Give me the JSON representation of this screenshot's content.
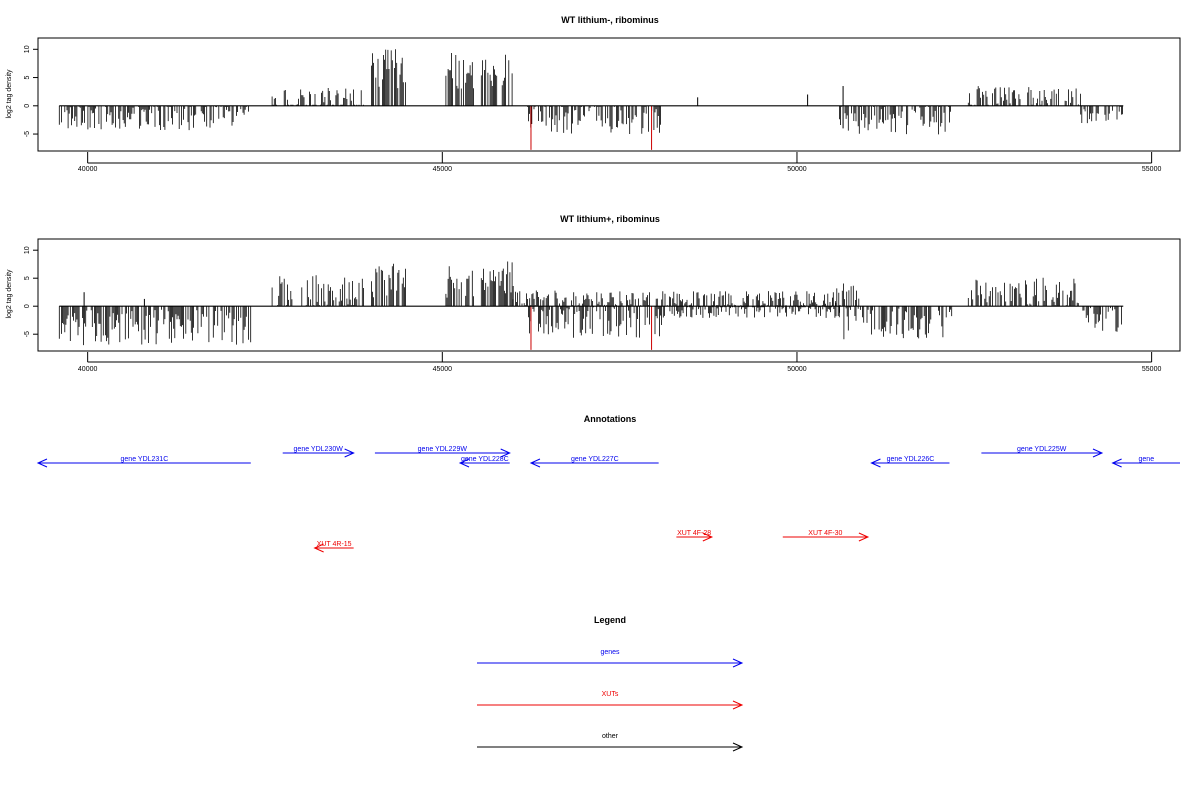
{
  "chart_data": [
    {
      "type": "bar",
      "title": "WT lithium-, ribominus",
      "xlabel": "",
      "ylabel": "log2 tag density",
      "xlim": [
        39300,
        55400
      ],
      "ylim": [
        -8,
        12
      ],
      "xticks": [
        40000,
        45000,
        50000,
        55000
      ],
      "xtick_labels": [
        "40000",
        "45000",
        "50000",
        "55000"
      ],
      "yticks": [
        -5,
        0,
        5,
        10
      ],
      "ytick_labels": [
        "-5",
        "0",
        "5",
        "10"
      ],
      "baseline": [
        39600,
        54600
      ],
      "grid": false,
      "colors": {
        "bars": "#000000",
        "highlight": "#cc0000",
        "frame": "#000000"
      },
      "segments": [
        {
          "from": 39600,
          "to": 42300,
          "strand": "minus",
          "mean": -2.0,
          "spread": 2.3
        },
        {
          "from": 42600,
          "to": 43900,
          "strand": "plus",
          "mean": 1.0,
          "spread": 2.2
        },
        {
          "from": 44000,
          "to": 44500,
          "strand": "plus",
          "mean": 6.5,
          "spread": 3.5
        },
        {
          "from": 45050,
          "to": 45450,
          "strand": "plus",
          "mean": 5.5,
          "spread": 3.5
        },
        {
          "from": 45550,
          "to": 46000,
          "strand": "plus",
          "mean": 6.0,
          "spread": 3.5
        },
        {
          "from": 46200,
          "to": 48100,
          "strand": "minus",
          "mean": -2.2,
          "spread": 2.8
        },
        {
          "from": 50600,
          "to": 52200,
          "strand": "minus",
          "mean": -2.3,
          "spread": 2.8
        },
        {
          "from": 52400,
          "to": 54000,
          "strand": "plus",
          "mean": 1.5,
          "spread": 2.0
        },
        {
          "from": 54000,
          "to": 54600,
          "strand": "minus",
          "mean": -1.5,
          "spread": 1.6
        }
      ],
      "spikes": [
        {
          "x": 46250,
          "y": -7.8,
          "color": "#cc0000"
        },
        {
          "x": 47950,
          "y": -7.8,
          "color": "#cc0000"
        },
        {
          "x": 48600,
          "y": 1.5,
          "color": "#000000"
        },
        {
          "x": 50150,
          "y": 2.0,
          "color": "#000000"
        },
        {
          "x": 50650,
          "y": 3.5,
          "color": "#000000"
        },
        {
          "x": 50650,
          "y": -4.0,
          "color": "#000000"
        }
      ]
    },
    {
      "type": "bar",
      "title": "WT lithium+, ribominus",
      "xlabel": "",
      "ylabel": "log2 tag density",
      "xlim": [
        39300,
        55400
      ],
      "ylim": [
        -8,
        12
      ],
      "xticks": [
        40000,
        45000,
        50000,
        55000
      ],
      "xtick_labels": [
        "40000",
        "45000",
        "50000",
        "55000"
      ],
      "yticks": [
        -5,
        0,
        5,
        10
      ],
      "ytick_labels": [
        "-5",
        "0",
        "5",
        "10"
      ],
      "baseline": [
        39600,
        54600
      ],
      "grid": false,
      "colors": {
        "bars": "#000000",
        "highlight": "#cc0000",
        "frame": "#000000"
      },
      "segments": [
        {
          "from": 39600,
          "to": 42300,
          "strand": "minus",
          "mean": -3.8,
          "spread": 3.2
        },
        {
          "from": 42600,
          "to": 43900,
          "strand": "plus",
          "mean": 2.5,
          "spread": 3.0
        },
        {
          "from": 44000,
          "to": 44500,
          "strand": "plus",
          "mean": 4.5,
          "spread": 3.0
        },
        {
          "from": 45050,
          "to": 45450,
          "strand": "plus",
          "mean": 4.5,
          "spread": 3.0
        },
        {
          "from": 45550,
          "to": 46000,
          "strand": "plus",
          "mean": 5.0,
          "spread": 3.0
        },
        {
          "from": 46000,
          "to": 50600,
          "strand": "plus",
          "mean": 1.2,
          "spread": 1.5
        },
        {
          "from": 46200,
          "to": 48100,
          "strand": "minus",
          "mean": -2.8,
          "spread": 3.0
        },
        {
          "from": 48100,
          "to": 50600,
          "strand": "minus",
          "mean": -0.8,
          "spread": 1.3
        },
        {
          "from": 50500,
          "to": 50900,
          "strand": "plus",
          "mean": 2.0,
          "spread": 2.0
        },
        {
          "from": 50600,
          "to": 52200,
          "strand": "minus",
          "mean": -3.0,
          "spread": 3.0
        },
        {
          "from": 52400,
          "to": 54000,
          "strand": "plus",
          "mean": 2.5,
          "spread": 2.5
        },
        {
          "from": 54000,
          "to": 54600,
          "strand": "minus",
          "mean": -2.5,
          "spread": 2.5
        }
      ],
      "spikes": [
        {
          "x": 46250,
          "y": -7.8,
          "color": "#cc0000"
        },
        {
          "x": 47950,
          "y": -7.8,
          "color": "#cc0000"
        },
        {
          "x": 39950,
          "y": 2.5,
          "color": "#000000"
        },
        {
          "x": 40800,
          "y": 1.3,
          "color": "#000000"
        }
      ]
    }
  ],
  "annotations": {
    "title": "Annotations",
    "xlim": [
      39300,
      55400
    ],
    "colors": {
      "genes": "#0000ee",
      "xuts": "#ee0000",
      "other": "#000000"
    },
    "features": [
      {
        "label": "gene YDL231C",
        "start": 39300,
        "end": 42300,
        "strand": "-",
        "kind": "gene",
        "row": "b"
      },
      {
        "label": "gene YDL230W",
        "start": 42750,
        "end": 43750,
        "strand": "+",
        "kind": "gene",
        "row": "a"
      },
      {
        "label": "gene YDL229W",
        "start": 44050,
        "end": 45950,
        "strand": "+",
        "kind": "gene",
        "row": "a"
      },
      {
        "label": "gene YDL228C",
        "start": 45250,
        "end": 45950,
        "strand": "-",
        "kind": "gene",
        "row": "b"
      },
      {
        "label": "gene YDL227C",
        "start": 46250,
        "end": 48050,
        "strand": "-",
        "kind": "gene",
        "row": "b"
      },
      {
        "label": "gene YDL226C",
        "start": 51050,
        "end": 52150,
        "strand": "-",
        "kind": "gene",
        "row": "b"
      },
      {
        "label": "gene YDL225W",
        "start": 52600,
        "end": 54300,
        "strand": "+",
        "kind": "gene",
        "row": "a"
      },
      {
        "label": "gene",
        "start": 54450,
        "end": 55400,
        "strand": "-",
        "kind": "gene",
        "row": "b"
      },
      {
        "label": "XUT 4R-15",
        "start": 43200,
        "end": 43750,
        "strand": "-",
        "kind": "xut",
        "row": "d"
      },
      {
        "label": "XUT 4F-28",
        "start": 48300,
        "end": 48800,
        "strand": "+",
        "kind": "xut",
        "row": "c"
      },
      {
        "label": "XUT 4F-30",
        "start": 49800,
        "end": 51000,
        "strand": "+",
        "kind": "xut",
        "row": "c"
      }
    ]
  },
  "legend": {
    "title": "Legend",
    "items": [
      {
        "label": "genes",
        "color": "#0000ee"
      },
      {
        "label": "XUTs",
        "color": "#ee0000"
      },
      {
        "label": "other",
        "color": "#000000"
      }
    ]
  }
}
